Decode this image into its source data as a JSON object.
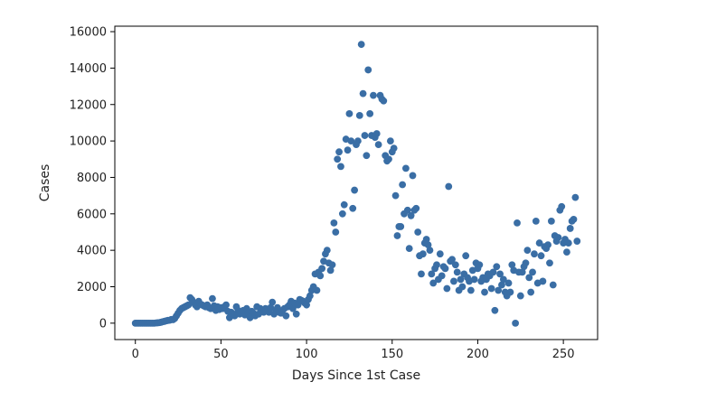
{
  "chart_data": {
    "type": "scatter",
    "title": "",
    "xlabel": "Days Since 1st Case",
    "ylabel": "Cases",
    "xlim": [
      -12,
      270
    ],
    "ylim": [
      -900,
      16300
    ],
    "xticks": [
      0,
      50,
      100,
      150,
      200,
      250
    ],
    "yticks": [
      0,
      2000,
      4000,
      6000,
      8000,
      10000,
      12000,
      14000,
      16000
    ],
    "grid": false,
    "legend": "none",
    "colors": {
      "marker": "#3a6ea5"
    },
    "series": [
      {
        "name": "Cases",
        "points": [
          [
            0,
            0
          ],
          [
            1,
            0
          ],
          [
            2,
            0
          ],
          [
            3,
            0
          ],
          [
            4,
            0
          ],
          [
            5,
            0
          ],
          [
            6,
            0
          ],
          [
            7,
            0
          ],
          [
            8,
            0
          ],
          [
            9,
            0
          ],
          [
            10,
            0
          ],
          [
            11,
            0
          ],
          [
            12,
            10
          ],
          [
            13,
            20
          ],
          [
            14,
            30
          ],
          [
            15,
            50
          ],
          [
            16,
            80
          ],
          [
            17,
            100
          ],
          [
            18,
            130
          ],
          [
            19,
            150
          ],
          [
            20,
            160
          ],
          [
            21,
            200
          ],
          [
            22,
            190
          ],
          [
            23,
            260
          ],
          [
            24,
            400
          ],
          [
            25,
            550
          ],
          [
            26,
            700
          ],
          [
            27,
            800
          ],
          [
            28,
            850
          ],
          [
            29,
            900
          ],
          [
            30,
            950
          ],
          [
            31,
            1000
          ],
          [
            32,
            1400
          ],
          [
            33,
            1300
          ],
          [
            34,
            1150
          ],
          [
            35,
            1000
          ],
          [
            36,
            900
          ],
          [
            37,
            1200
          ],
          [
            38,
            1050
          ],
          [
            39,
            1000
          ],
          [
            40,
            950
          ],
          [
            41,
            900
          ],
          [
            42,
            1000
          ],
          [
            43,
            850
          ],
          [
            44,
            800
          ],
          [
            45,
            1350
          ],
          [
            46,
            950
          ],
          [
            47,
            700
          ],
          [
            48,
            900
          ],
          [
            49,
            750
          ],
          [
            50,
            850
          ],
          [
            51,
            800
          ],
          [
            52,
            900
          ],
          [
            53,
            1000
          ],
          [
            54,
            650
          ],
          [
            55,
            300
          ],
          [
            56,
            600
          ],
          [
            57,
            500
          ],
          [
            58,
            400
          ],
          [
            59,
            900
          ],
          [
            60,
            700
          ],
          [
            61,
            500
          ],
          [
            62,
            600
          ],
          [
            63,
            700
          ],
          [
            64,
            450
          ],
          [
            65,
            800
          ],
          [
            66,
            550
          ],
          [
            67,
            300
          ],
          [
            68,
            650
          ],
          [
            69,
            550
          ],
          [
            70,
            400
          ],
          [
            71,
            900
          ],
          [
            72,
            500
          ],
          [
            73,
            800
          ],
          [
            74,
            700
          ],
          [
            75,
            600
          ],
          [
            76,
            800
          ],
          [
            77,
            700
          ],
          [
            78,
            600
          ],
          [
            79,
            850
          ],
          [
            80,
            1150
          ],
          [
            81,
            500
          ],
          [
            82,
            700
          ],
          [
            83,
            850
          ],
          [
            84,
            600
          ],
          [
            85,
            550
          ],
          [
            86,
            700
          ],
          [
            87,
            800
          ],
          [
            88,
            400
          ],
          [
            89,
            900
          ],
          [
            90,
            1000
          ],
          [
            91,
            1200
          ],
          [
            92,
            800
          ],
          [
            93,
            1100
          ],
          [
            94,
            500
          ],
          [
            95,
            1000
          ],
          [
            96,
            1300
          ],
          [
            97,
            1250
          ],
          [
            98,
            1200
          ],
          [
            99,
            1100
          ],
          [
            100,
            1000
          ],
          [
            101,
            1300
          ],
          [
            102,
            1500
          ],
          [
            103,
            1800
          ],
          [
            104,
            2000
          ],
          [
            105,
            2700
          ],
          [
            106,
            1800
          ],
          [
            107,
            2800
          ],
          [
            108,
            2600
          ],
          [
            109,
            3000
          ],
          [
            110,
            3400
          ],
          [
            111,
            3800
          ],
          [
            112,
            4000
          ],
          [
            113,
            3300
          ],
          [
            114,
            2900
          ],
          [
            115,
            3200
          ],
          [
            116,
            5500
          ],
          [
            117,
            5000
          ],
          [
            118,
            9000
          ],
          [
            119,
            9400
          ],
          [
            120,
            8600
          ],
          [
            121,
            6000
          ],
          [
            122,
            6500
          ],
          [
            123,
            10100
          ],
          [
            124,
            9500
          ],
          [
            125,
            11500
          ],
          [
            126,
            10000
          ],
          [
            127,
            6300
          ],
          [
            128,
            7300
          ],
          [
            129,
            9800
          ],
          [
            130,
            10000
          ],
          [
            131,
            11400
          ],
          [
            132,
            15300
          ],
          [
            133,
            12600
          ],
          [
            134,
            10300
          ],
          [
            135,
            9200
          ],
          [
            136,
            13900
          ],
          [
            137,
            11500
          ],
          [
            138,
            10300
          ],
          [
            139,
            12500
          ],
          [
            140,
            10200
          ],
          [
            141,
            10400
          ],
          [
            142,
            9800
          ],
          [
            143,
            12500
          ],
          [
            144,
            12300
          ],
          [
            145,
            12200
          ],
          [
            146,
            9200
          ],
          [
            147,
            8900
          ],
          [
            148,
            9000
          ],
          [
            149,
            10000
          ],
          [
            150,
            9400
          ],
          [
            151,
            9600
          ],
          [
            152,
            7000
          ],
          [
            153,
            4800
          ],
          [
            154,
            5300
          ],
          [
            155,
            5300
          ],
          [
            156,
            7600
          ],
          [
            157,
            6000
          ],
          [
            158,
            8500
          ],
          [
            159,
            6200
          ],
          [
            160,
            4100
          ],
          [
            161,
            5900
          ],
          [
            162,
            8100
          ],
          [
            163,
            6200
          ],
          [
            164,
            6300
          ],
          [
            165,
            5000
          ],
          [
            166,
            3700
          ],
          [
            167,
            2700
          ],
          [
            168,
            3800
          ],
          [
            169,
            4400
          ],
          [
            170,
            4600
          ],
          [
            171,
            4300
          ],
          [
            172,
            4000
          ],
          [
            173,
            2700
          ],
          [
            174,
            2200
          ],
          [
            175,
            3000
          ],
          [
            176,
            3200
          ],
          [
            177,
            2400
          ],
          [
            178,
            3800
          ],
          [
            179,
            2600
          ],
          [
            180,
            3100
          ],
          [
            181,
            3000
          ],
          [
            182,
            1900
          ],
          [
            183,
            7500
          ],
          [
            184,
            3400
          ],
          [
            185,
            3500
          ],
          [
            186,
            2300
          ],
          [
            187,
            3200
          ],
          [
            188,
            2800
          ],
          [
            189,
            1800
          ],
          [
            190,
            2400
          ],
          [
            191,
            2000
          ],
          [
            192,
            2700
          ],
          [
            193,
            3700
          ],
          [
            194,
            2500
          ],
          [
            195,
            2300
          ],
          [
            196,
            1800
          ],
          [
            197,
            2900
          ],
          [
            198,
            2400
          ],
          [
            199,
            3300
          ],
          [
            200,
            3000
          ],
          [
            201,
            3200
          ],
          [
            202,
            2300
          ],
          [
            203,
            2500
          ],
          [
            204,
            1700
          ],
          [
            205,
            2400
          ],
          [
            206,
            2700
          ],
          [
            207,
            2600
          ],
          [
            208,
            1900
          ],
          [
            209,
            2800
          ],
          [
            210,
            700
          ],
          [
            211,
            3100
          ],
          [
            212,
            1800
          ],
          [
            213,
            2700
          ],
          [
            214,
            2100
          ],
          [
            215,
            2400
          ],
          [
            216,
            1700
          ],
          [
            217,
            1500
          ],
          [
            218,
            2200
          ],
          [
            219,
            1700
          ],
          [
            220,
            3200
          ],
          [
            221,
            2900
          ],
          [
            222,
            0
          ],
          [
            223,
            5500
          ],
          [
            224,
            2800
          ],
          [
            225,
            1500
          ],
          [
            226,
            2800
          ],
          [
            227,
            3100
          ],
          [
            228,
            3300
          ],
          [
            229,
            4000
          ],
          [
            230,
            2500
          ],
          [
            231,
            1700
          ],
          [
            232,
            2800
          ],
          [
            233,
            3800
          ],
          [
            234,
            5600
          ],
          [
            235,
            2200
          ],
          [
            236,
            4400
          ],
          [
            237,
            3700
          ],
          [
            238,
            2300
          ],
          [
            239,
            4200
          ],
          [
            240,
            4100
          ],
          [
            241,
            4300
          ],
          [
            242,
            3300
          ],
          [
            243,
            5600
          ],
          [
            244,
            2100
          ],
          [
            245,
            4800
          ],
          [
            246,
            4500
          ],
          [
            247,
            4700
          ],
          [
            248,
            6200
          ],
          [
            249,
            6400
          ],
          [
            250,
            4400
          ],
          [
            251,
            4600
          ],
          [
            252,
            3900
          ],
          [
            253,
            4400
          ],
          [
            254,
            5200
          ],
          [
            255,
            5600
          ],
          [
            256,
            5700
          ],
          [
            257,
            6900
          ],
          [
            258,
            4500
          ]
        ]
      }
    ]
  }
}
